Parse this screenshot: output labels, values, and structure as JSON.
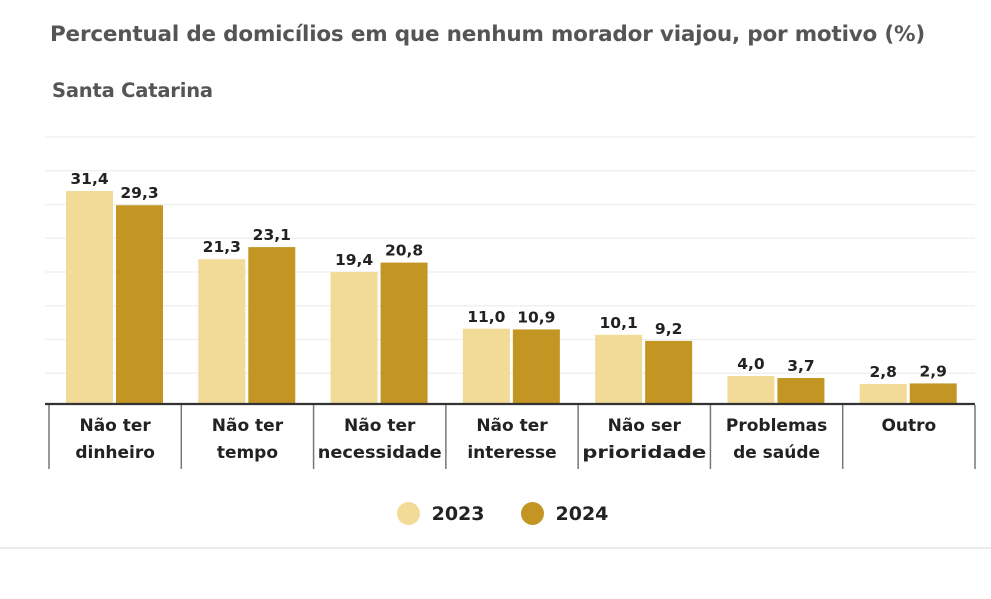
{
  "header": {
    "title": "Percentual de domicílios em que nenhum morador viajou, por motivo (%)",
    "subtitle": "Santa Catarina"
  },
  "colors": {
    "series_2023": "#f2da97",
    "series_2024": "#c39624",
    "gridline": "#eeeeee",
    "axis": "#333333",
    "text": "#222222",
    "title": "#555555"
  },
  "legend": {
    "items": [
      {
        "label": "2023",
        "color": "#f2da97"
      },
      {
        "label": "2024",
        "color": "#c39624"
      }
    ]
  },
  "chart_data": {
    "type": "bar",
    "title": "Percentual de domicílios em que nenhum morador viajou, por motivo (%)",
    "subtitle": "Santa Catarina",
    "xlabel": "",
    "ylabel": "",
    "ylim": [
      0,
      40
    ],
    "grid": true,
    "legend_position": "bottom-center",
    "categories": [
      [
        "Não ter",
        "dinheiro"
      ],
      [
        "Não ter",
        "tempo"
      ],
      [
        "Não ter",
        "necessidade"
      ],
      [
        "Não ter",
        "interesse"
      ],
      [
        "Não ser",
        "prioridade"
      ],
      [
        "Problemas",
        "de saúde"
      ],
      [
        "Outro"
      ]
    ],
    "series": [
      {
        "name": "2023",
        "values": [
          31.4,
          21.3,
          19.4,
          11.0,
          10.1,
          4.0,
          2.8
        ],
        "labels": [
          "31,4",
          "21,3",
          "19,4",
          "11,0",
          "10,1",
          "4,0",
          "2,8"
        ]
      },
      {
        "name": "2024",
        "values": [
          29.3,
          23.1,
          20.8,
          10.9,
          9.2,
          3.7,
          2.9
        ],
        "labels": [
          "29,3",
          "23,1",
          "20,8",
          "10,9",
          "9,2",
          "3,7",
          "2,9"
        ]
      }
    ]
  }
}
